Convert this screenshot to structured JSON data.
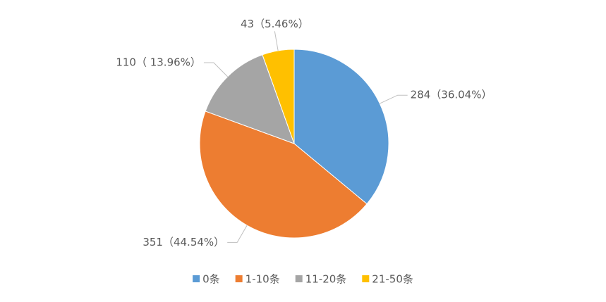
{
  "chart_data": {
    "type": "pie",
    "categories": [
      "0条",
      "1-10条",
      "11-20条",
      "21-50条"
    ],
    "values": [
      284,
      351,
      110,
      43
    ],
    "value_labels": [
      "284（36.04%）",
      "351（44.54%）",
      "110（ 13.96%）",
      "43（5.46%）"
    ],
    "colors": [
      "#5b9bd5",
      "#ed7d31",
      "#a5a5a5",
      "#ffc000"
    ],
    "legend": "bottom"
  }
}
